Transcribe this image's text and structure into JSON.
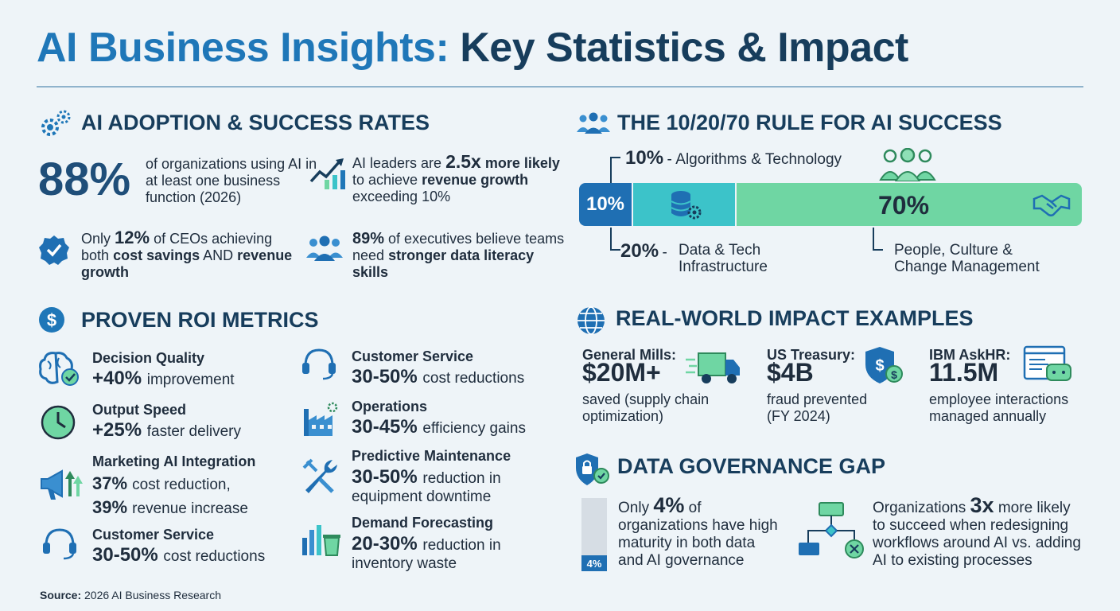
{
  "title": {
    "part1": "AI Business Insights:",
    "part2": "Key Statistics & Impact"
  },
  "adoption": {
    "heading": "AI ADOPTION & SUCCESS RATES",
    "stat1": {
      "value": "88%",
      "text": "of organizations using AI in at least one business function (2026)"
    },
    "stat2": {
      "pre": "AI leaders are",
      "value": "2.5x",
      "bold1": "more likely",
      "mid": "to achieve",
      "bold2": "revenue growth",
      "post": "exceeding 10%"
    },
    "stat3": {
      "pre": "Only",
      "value": "12%",
      "mid": "of CEOs achieving both",
      "bold1": "cost savings",
      "and": "AND",
      "bold2": "revenue growth"
    },
    "stat4": {
      "value": "89%",
      "mid": "of executives believe teams need",
      "bold1": "stronger data literacy skills"
    }
  },
  "rule_1020": {
    "heading": "THE 10/20/70 RULE FOR AI SUCCESS",
    "seg10": {
      "pct": "10%",
      "label": "Algorithms & Technology",
      "bar_label": "10%"
    },
    "seg20": {
      "pct": "20%",
      "label1": "Data & Tech",
      "label2": "Infrastructure"
    },
    "seg70": {
      "pct": "70%",
      "label1": "People, Culture &",
      "label2": "Change Management",
      "bar_label": "70%"
    },
    "dash": "-"
  },
  "roi": {
    "heading": "PROVEN ROI METRICS",
    "left": [
      {
        "label": "Decision Quality",
        "value": "+40%",
        "unit": "improvement",
        "icon": "brain-icon"
      },
      {
        "label": "Output Speed",
        "value": "+25%",
        "unit": "faster delivery",
        "icon": "clock-icon"
      },
      {
        "label": "Marketing AI Integration",
        "value": "37%",
        "unit": "cost reduction,",
        "value2": "39%",
        "unit2": "revenue increase",
        "icon": "megaphone-icon"
      },
      {
        "label": "Customer Service",
        "value": "30-50%",
        "unit": "cost reductions",
        "icon": "headset-icon"
      }
    ],
    "right": [
      {
        "label": "Customer Service",
        "value": "30-50%",
        "unit": "cost reductions",
        "icon": "headset-icon"
      },
      {
        "label": "Operations",
        "value": "30-45%",
        "unit": "efficiency gains",
        "icon": "factory-icon"
      },
      {
        "label": "Predictive Maintenance",
        "value": "30-50%",
        "unit": "reduction in",
        "unit2": "equipment downtime",
        "icon": "wrench-icon"
      },
      {
        "label": "Demand Forecasting",
        "value": "20-30%",
        "unit": "reduction in",
        "unit2": "inventory waste",
        "icon": "chart-bin-icon"
      }
    ]
  },
  "impact": {
    "heading": "REAL-WORLD IMPACT EXAMPLES",
    "items": [
      {
        "org": "General Mills:",
        "value": "$20M+",
        "l1": "saved (supply chain",
        "l2": "optimization)"
      },
      {
        "org": "US Treasury:",
        "value": "$4B",
        "l1": "fraud prevented",
        "l2": "(FY 2024)"
      },
      {
        "org": "IBM AskHR:",
        "value": "11.5M",
        "l1": "employee interactions",
        "l2": "managed annually"
      }
    ]
  },
  "governance": {
    "heading": "DATA GOVERNANCE GAP",
    "bar_label": "4%",
    "bar_fraction": 0.04,
    "left": {
      "pre": "Only",
      "value": "4%",
      "post": "of",
      "l2": "organizations have high",
      "l3": "maturity in both data",
      "l4": "and AI governance"
    },
    "right": {
      "pre": "Organizations",
      "value": "3x",
      "post": "more likely",
      "l2": "to succeed when redesigning",
      "l3": "workflows around AI vs. adding",
      "l4": "AI to existing processes"
    }
  },
  "source": {
    "label": "Source:",
    "text": "2026 AI Business Research"
  },
  "colors": {
    "blue": "#1f77b8",
    "navy": "#173d5c",
    "teal": "#3cc3c9",
    "green": "#6fd6a3",
    "dark_blue": "#1f6fb3"
  }
}
